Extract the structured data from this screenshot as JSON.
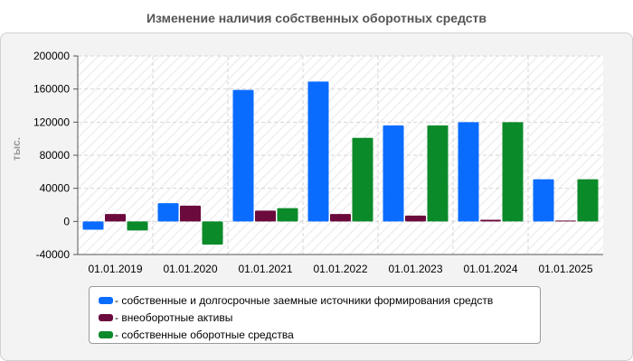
{
  "chart_data": {
    "type": "bar",
    "title": "Изменение наличия собственных оборотных средств",
    "ylabel": "тыс.",
    "xlabel": "",
    "categories": [
      "01.01.2019",
      "01.01.2020",
      "01.01.2021",
      "01.01.2022",
      "01.01.2023",
      "01.01.2024",
      "01.01.2025"
    ],
    "ylim": [
      -40000,
      200000
    ],
    "yticks": [
      -40000,
      0,
      40000,
      80000,
      120000,
      160000,
      200000
    ],
    "grid": true,
    "legend_position": "bottom",
    "series": [
      {
        "name": "собственные и долгосрочные заемные источники формирования средств",
        "color": "#0a6cff",
        "values": [
          -10000,
          22000,
          159000,
          169000,
          116000,
          120000,
          51000
        ]
      },
      {
        "name": "внеоборотные активы",
        "color": "#6b0a3c",
        "values": [
          9000,
          19000,
          13000,
          9000,
          7000,
          2000,
          1000
        ]
      },
      {
        "name": "собственные оборотные средства",
        "color": "#0b8a2a",
        "values": [
          -11000,
          -28000,
          16000,
          101000,
          116000,
          120000,
          51000
        ]
      }
    ]
  }
}
